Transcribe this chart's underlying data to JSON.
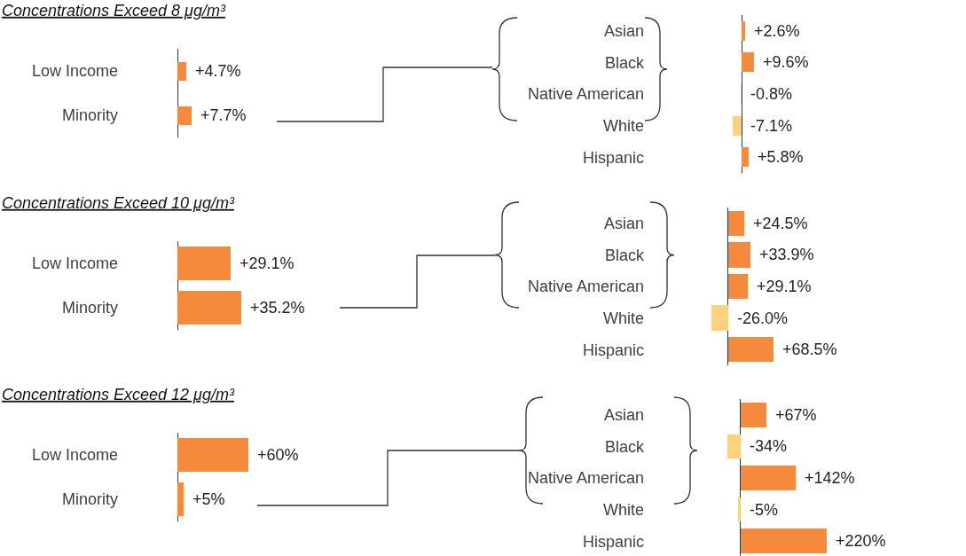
{
  "chart_data": [
    {
      "type": "bar",
      "orientation": "horizontal",
      "title": "Concentrations Exceed 8 μg/m³",
      "categories": [
        "Low Income",
        "Minority"
      ],
      "values": [
        4.7,
        7.7
      ],
      "colors": [
        "#f58a3c",
        "#f58a3c"
      ],
      "value_labels": [
        "+4.7%",
        "+7.7%"
      ],
      "tick_labels": "y"
    },
    {
      "type": "bar",
      "orientation": "horizontal",
      "categories": [
        "Asian",
        "Black",
        "Native American",
        "White",
        "Hispanic"
      ],
      "values": [
        2.6,
        9.6,
        -0.8,
        -7.1,
        5.8
      ],
      "colors": [
        "#f58a3c",
        "#f58a3c",
        "#fdd17e",
        "#fdd17e",
        "#f58a3c"
      ],
      "value_labels": [
        "+2.6%",
        "+9.6%",
        "-0.8%",
        "-7.1%",
        "+5.8%"
      ],
      "tick_labels": "y"
    },
    {
      "type": "bar",
      "orientation": "horizontal",
      "title": "Concentrations Exceed 10 μg/m³",
      "categories": [
        "Low Income",
        "Minority"
      ],
      "values": [
        29.1,
        35.2
      ],
      "colors": [
        "#f58a3c",
        "#f58a3c"
      ],
      "value_labels": [
        "+29.1%",
        "+35.2%"
      ],
      "tick_labels": "y"
    },
    {
      "type": "bar",
      "orientation": "horizontal",
      "categories": [
        "Asian",
        "Black",
        "Native American",
        "White",
        "Hispanic"
      ],
      "values": [
        24.5,
        33.9,
        29.1,
        -26.0,
        68.5
      ],
      "colors": [
        "#f58a3c",
        "#f58a3c",
        "#f58a3c",
        "#fdd17e",
        "#f58a3c"
      ],
      "value_labels": [
        "+24.5%",
        "+33.9%",
        "+29.1%",
        "-26.0%",
        "+68.5%"
      ],
      "tick_labels": "y"
    },
    {
      "type": "bar",
      "orientation": "horizontal",
      "title": "Concentrations Exceed 12 μg/m³",
      "categories": [
        "Low Income",
        "Minority"
      ],
      "values": [
        60,
        5
      ],
      "colors": [
        "#f58a3c",
        "#f58a3c"
      ],
      "value_labels": [
        "+60%",
        "+5%"
      ],
      "tick_labels": "y"
    },
    {
      "type": "bar",
      "orientation": "horizontal",
      "categories": [
        "Asian",
        "Black",
        "Native American",
        "White",
        "Hispanic"
      ],
      "values": [
        67,
        -34,
        142,
        -5,
        220
      ],
      "colors": [
        "#f58a3c",
        "#fdd17e",
        "#f58a3c",
        "#fdd17e",
        "#f58a3c"
      ],
      "value_labels": [
        "+67%",
        "-34%",
        "+142%",
        "-5%",
        "+220%"
      ],
      "tick_labels": "y"
    }
  ]
}
